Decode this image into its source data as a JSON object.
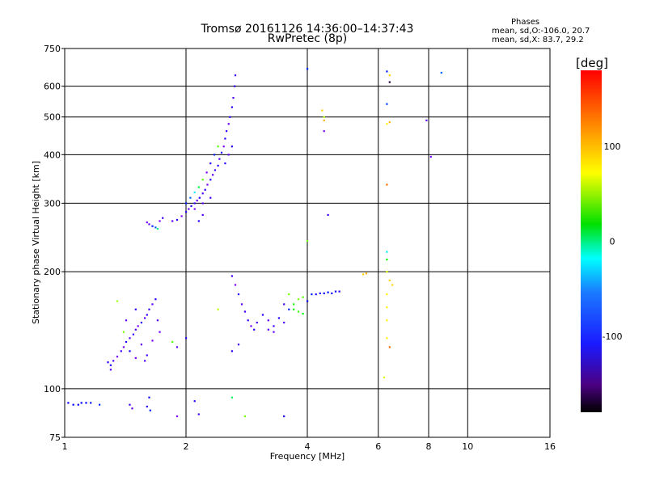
{
  "title": "Tromsø 20161126 14:36:00–14:37:43",
  "subtitle": "RwPretec (8p)",
  "stats": {
    "heading": "Phases",
    "line1": "mean, sd,O:-106.0, 20.7",
    "line2": "mean, sd,X:  83.7, 29.2"
  },
  "chart_data": {
    "type": "scatter",
    "xlabel": "Frequency [MHz]",
    "ylabel": "Stationary phase Virtual Height [km]",
    "x_scale": "log",
    "y_scale": "log",
    "xlim": [
      1,
      16
    ],
    "ylim": [
      75,
      750
    ],
    "x_ticks": [
      1,
      2,
      4,
      6,
      8,
      10,
      16
    ],
    "y_ticks": [
      75,
      100,
      200,
      300,
      400,
      500,
      600,
      750
    ],
    "grid": true,
    "colorbar": {
      "label": "[deg]",
      "range": [
        -180,
        180
      ],
      "ticks": [
        100,
        0,
        -100
      ]
    },
    "points": [
      [
        1.02,
        92,
        -110
      ],
      [
        1.05,
        91,
        -105
      ],
      [
        1.08,
        91,
        -112
      ],
      [
        1.1,
        92,
        -108
      ],
      [
        1.13,
        92,
        -110
      ],
      [
        1.16,
        92,
        -100
      ],
      [
        1.22,
        91,
        -95
      ],
      [
        1.45,
        91,
        -130
      ],
      [
        1.47,
        89,
        -140
      ],
      [
        1.6,
        90,
        -120
      ],
      [
        1.62,
        95,
        -110
      ],
      [
        1.63,
        88,
        -100
      ],
      [
        1.9,
        85,
        -150
      ],
      [
        2.1,
        93,
        -125
      ],
      [
        2.15,
        86,
        -130
      ],
      [
        2.6,
        95,
        10
      ],
      [
        2.8,
        85,
        70
      ],
      [
        3.5,
        85,
        -115
      ],
      [
        1.3,
        115,
        -120
      ],
      [
        1.32,
        118,
        -135
      ],
      [
        1.35,
        121,
        -145
      ],
      [
        1.38,
        125,
        -130
      ],
      [
        1.4,
        128,
        -150
      ],
      [
        1.42,
        132,
        -120
      ],
      [
        1.45,
        135,
        -140
      ],
      [
        1.48,
        138,
        -125
      ],
      [
        1.5,
        142,
        -135
      ],
      [
        1.52,
        145,
        -150
      ],
      [
        1.55,
        148,
        -120
      ],
      [
        1.58,
        152,
        -140
      ],
      [
        1.6,
        155,
        -130
      ],
      [
        1.62,
        160,
        -125
      ],
      [
        1.65,
        165,
        -140
      ],
      [
        1.68,
        170,
        -120
      ],
      [
        1.7,
        150,
        -135
      ],
      [
        1.72,
        140,
        -145
      ],
      [
        1.45,
        125,
        -110
      ],
      [
        1.5,
        120,
        -150
      ],
      [
        1.55,
        130,
        -140
      ],
      [
        1.6,
        122,
        -130
      ],
      [
        1.4,
        140,
        70
      ],
      [
        1.35,
        168,
        80
      ],
      [
        1.3,
        112,
        -140
      ],
      [
        1.28,
        117,
        -120
      ],
      [
        1.65,
        133,
        -150
      ],
      [
        1.58,
        118,
        -135
      ],
      [
        1.5,
        160,
        -125
      ],
      [
        1.42,
        150,
        -140
      ],
      [
        1.6,
        268,
        -150
      ],
      [
        1.62,
        265,
        -140
      ],
      [
        1.65,
        262,
        -100
      ],
      [
        1.68,
        260,
        -80
      ],
      [
        1.7,
        258,
        0
      ],
      [
        1.72,
        270,
        -150
      ],
      [
        1.75,
        275,
        -130
      ],
      [
        1.85,
        270,
        -140
      ],
      [
        1.9,
        272,
        -120
      ],
      [
        1.95,
        278,
        -150
      ],
      [
        2.0,
        285,
        -125
      ],
      [
        2.03,
        290,
        -140
      ],
      [
        2.06,
        295,
        -120
      ],
      [
        2.1,
        300,
        -130
      ],
      [
        2.13,
        305,
        -145
      ],
      [
        2.16,
        310,
        -120
      ],
      [
        2.2,
        318,
        -135
      ],
      [
        2.23,
        325,
        -125
      ],
      [
        2.26,
        335,
        -150
      ],
      [
        2.3,
        345,
        -120
      ],
      [
        2.33,
        355,
        -140
      ],
      [
        2.36,
        365,
        -130
      ],
      [
        2.4,
        375,
        -120
      ],
      [
        2.42,
        390,
        -135
      ],
      [
        2.45,
        405,
        -125
      ],
      [
        2.48,
        420,
        -150
      ],
      [
        2.5,
        440,
        -120
      ],
      [
        2.52,
        460,
        -130
      ],
      [
        2.55,
        480,
        -140
      ],
      [
        2.57,
        500,
        -125
      ],
      [
        2.6,
        530,
        -120
      ],
      [
        2.62,
        560,
        -135
      ],
      [
        2.64,
        600,
        -120
      ],
      [
        2.65,
        640,
        -130
      ],
      [
        2.0,
        300,
        -100
      ],
      [
        2.05,
        310,
        -80
      ],
      [
        2.1,
        320,
        -40
      ],
      [
        2.15,
        330,
        20
      ],
      [
        2.2,
        345,
        60
      ],
      [
        2.25,
        360,
        -150
      ],
      [
        2.3,
        380,
        -120
      ],
      [
        2.35,
        400,
        -100
      ],
      [
        2.4,
        420,
        60
      ],
      [
        2.1,
        290,
        -150
      ],
      [
        2.2,
        300,
        -140
      ],
      [
        2.3,
        310,
        -130
      ],
      [
        2.5,
        380,
        -125
      ],
      [
        2.55,
        400,
        -140
      ],
      [
        2.6,
        420,
        -120
      ],
      [
        2.2,
        280,
        -135
      ],
      [
        2.15,
        270,
        -120
      ],
      [
        2.6,
        195,
        -130
      ],
      [
        2.65,
        185,
        -150
      ],
      [
        2.7,
        175,
        -120
      ],
      [
        2.75,
        165,
        -140
      ],
      [
        2.8,
        158,
        -130
      ],
      [
        2.85,
        150,
        -125
      ],
      [
        2.9,
        145,
        -145
      ],
      [
        2.95,
        142,
        -120
      ],
      [
        3.0,
        148,
        -135
      ],
      [
        3.1,
        155,
        -125
      ],
      [
        3.2,
        150,
        -140
      ],
      [
        3.3,
        145,
        -130
      ],
      [
        3.4,
        152,
        -120
      ],
      [
        3.5,
        148,
        -135
      ],
      [
        3.6,
        160,
        -100
      ],
      [
        3.7,
        165,
        40
      ],
      [
        3.8,
        170,
        70
      ],
      [
        3.9,
        172,
        60
      ],
      [
        4.0,
        168,
        -110
      ],
      [
        4.1,
        175,
        -100
      ],
      [
        4.2,
        175,
        -120
      ],
      [
        4.3,
        176,
        -115
      ],
      [
        4.4,
        176,
        -110
      ],
      [
        4.5,
        177,
        -105
      ],
      [
        4.6,
        176,
        -112
      ],
      [
        4.7,
        178,
        -108
      ],
      [
        4.8,
        178,
        -120
      ],
      [
        3.7,
        160,
        40
      ],
      [
        3.8,
        158,
        50
      ],
      [
        3.9,
        156,
        35
      ],
      [
        3.6,
        175,
        70
      ],
      [
        3.5,
        165,
        -130
      ],
      [
        3.3,
        140,
        -140
      ],
      [
        3.2,
        142,
        -135
      ],
      [
        2.7,
        130,
        -130
      ],
      [
        2.6,
        125,
        -120
      ],
      [
        1.9,
        128,
        -140
      ],
      [
        2.0,
        135,
        -120
      ],
      [
        1.85,
        132,
        60
      ],
      [
        2.4,
        160,
        90
      ],
      [
        4.0,
        665,
        -100
      ],
      [
        4.35,
        520,
        120
      ],
      [
        4.4,
        500,
        90
      ],
      [
        4.4,
        490,
        130
      ],
      [
        4.4,
        460,
        -150
      ],
      [
        4.5,
        280,
        -130
      ],
      [
        4.0,
        240,
        70
      ],
      [
        5.5,
        197,
        120
      ],
      [
        5.6,
        198,
        130
      ],
      [
        6.3,
        655,
        -100
      ],
      [
        6.4,
        640,
        120
      ],
      [
        6.4,
        615,
        -180
      ],
      [
        6.3,
        540,
        -90
      ],
      [
        6.3,
        480,
        110
      ],
      [
        6.4,
        485,
        130
      ],
      [
        7.9,
        490,
        -140
      ],
      [
        8.1,
        395,
        -150
      ],
      [
        8.6,
        650,
        -80
      ],
      [
        6.3,
        335,
        150
      ],
      [
        6.3,
        225,
        -40
      ],
      [
        6.3,
        215,
        40
      ],
      [
        6.3,
        200,
        100
      ],
      [
        6.3,
        175,
        110
      ],
      [
        6.3,
        162,
        110
      ],
      [
        6.3,
        150,
        110
      ],
      [
        6.3,
        135,
        110
      ],
      [
        6.4,
        128,
        150
      ],
      [
        6.4,
        190,
        120
      ],
      [
        6.5,
        185,
        120
      ],
      [
        6.2,
        107,
        100
      ]
    ]
  }
}
